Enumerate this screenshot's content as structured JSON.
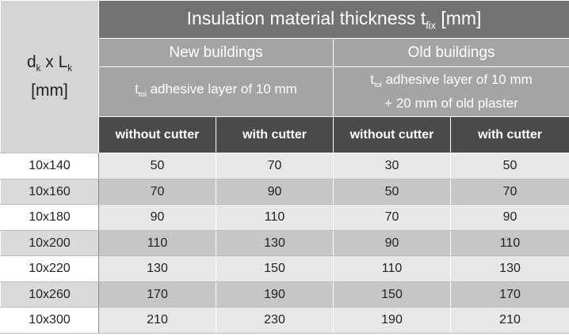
{
  "header": {
    "corner": {
      "line1_d": "d",
      "line1_k1": "k",
      "line1_x": " x L",
      "line1_k2": "k",
      "line2": "[mm]"
    },
    "title_prefix": "Insulation material thickness t",
    "title_sub": "fix",
    "title_suffix": " [mm]",
    "groups": [
      {
        "label": "New buildings",
        "desc_t": "t",
        "desc_sub": "tol",
        "desc_line1": " adhesive layer of 10 mm",
        "desc_line2": ""
      },
      {
        "label": "Old buildings",
        "desc_t": "t",
        "desc_sub": "tol",
        "desc_line1": " adhesive layer of 10 mm",
        "desc_line2": "+ 20 mm of old plaster"
      }
    ],
    "columns": [
      "without cutter",
      "with cutter",
      "without cutter",
      "with cutter"
    ]
  },
  "rows": [
    {
      "size": "10x140",
      "values": [
        "50",
        "70",
        "30",
        "50"
      ]
    },
    {
      "size": "10x160",
      "values": [
        "70",
        "90",
        "50",
        "70"
      ]
    },
    {
      "size": "10x180",
      "values": [
        "90",
        "110",
        "70",
        "90"
      ]
    },
    {
      "size": "10x200",
      "values": [
        "110",
        "130",
        "90",
        "110"
      ]
    },
    {
      "size": "10x220",
      "values": [
        "130",
        "150",
        "110",
        "130"
      ]
    },
    {
      "size": "10x260",
      "values": [
        "170",
        "190",
        "150",
        "170"
      ]
    },
    {
      "size": "10x300",
      "values": [
        "210",
        "230",
        "190",
        "210"
      ]
    }
  ]
}
